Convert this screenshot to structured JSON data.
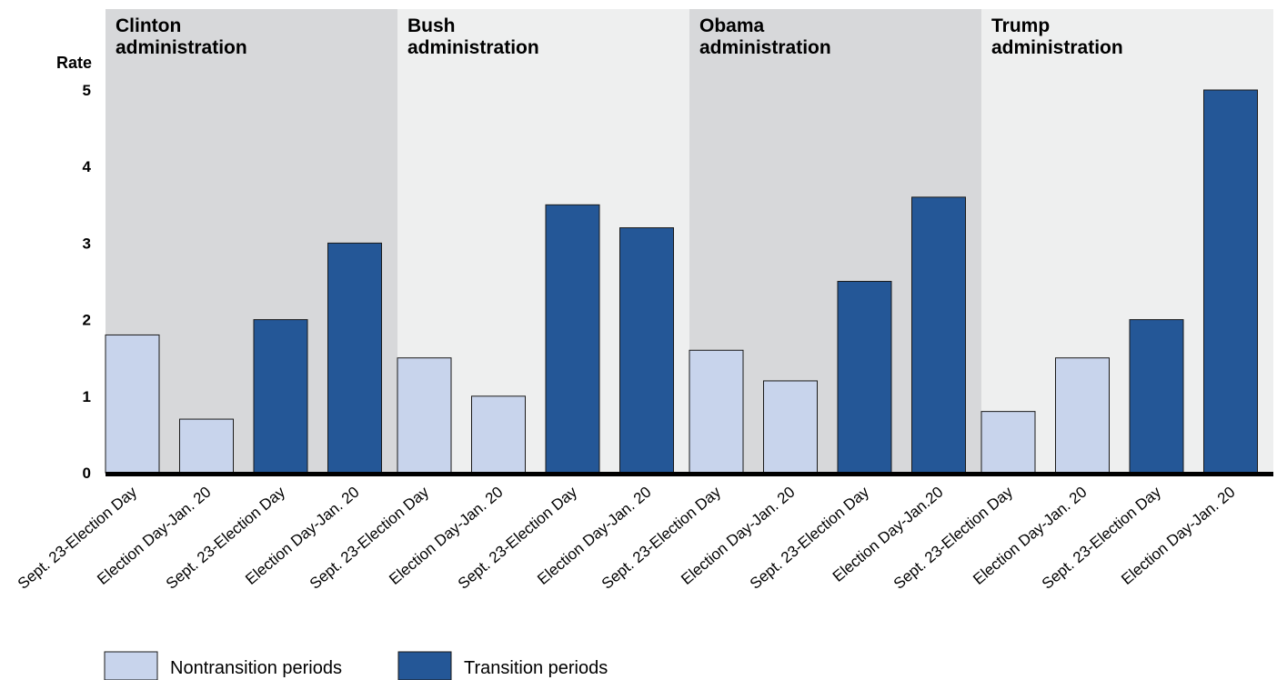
{
  "chart_data": {
    "type": "bar",
    "ylabel": "Rate",
    "ylim": [
      0,
      5
    ],
    "yticks": [
      0,
      1,
      2,
      3,
      4,
      5
    ],
    "grid": false,
    "legend_position": "bottom-left",
    "colors": {
      "Nontransition periods": "#c8d4ec",
      "Transition periods": "#245797",
      "band_dark": "#d7d8da",
      "band_light": "#eeefef"
    },
    "legend": [
      {
        "name": "Nontransition periods",
        "color": "#c8d4ec"
      },
      {
        "name": "Transition periods",
        "color": "#245797"
      }
    ],
    "groups": [
      {
        "name": "Clinton administration",
        "bars": [
          {
            "label": "Sept. 23-Election Day",
            "value": 1.8,
            "series": "Nontransition periods"
          },
          {
            "label": "Election Day-Jan. 20",
            "value": 0.7,
            "series": "Nontransition periods"
          },
          {
            "label": "Sept. 23-Election Day",
            "value": 2.0,
            "series": "Transition periods"
          },
          {
            "label": "Election Day-Jan. 20",
            "value": 3.0,
            "series": "Transition periods"
          }
        ]
      },
      {
        "name": "Bush administration",
        "bars": [
          {
            "label": "Sept. 23-Election Day",
            "value": 1.5,
            "series": "Nontransition periods"
          },
          {
            "label": "Election Day-Jan. 20",
            "value": 1.0,
            "series": "Nontransition periods"
          },
          {
            "label": "Sept. 23-Election Day",
            "value": 3.5,
            "series": "Transition periods"
          },
          {
            "label": "Election Day-Jan. 20",
            "value": 3.2,
            "series": "Transition periods"
          }
        ]
      },
      {
        "name": "Obama administration",
        "bars": [
          {
            "label": "Sept. 23-Election Day",
            "value": 1.6,
            "series": "Nontransition periods"
          },
          {
            "label": "Election Day-Jan. 20",
            "value": 1.2,
            "series": "Nontransition periods"
          },
          {
            "label": "Sept. 23-Election Day",
            "value": 2.5,
            "series": "Transition periods"
          },
          {
            "label": "Election Day-Jan.20",
            "value": 3.6,
            "series": "Transition periods"
          }
        ]
      },
      {
        "name": "Trump administration",
        "bars": [
          {
            "label": "Sept. 23-Election Day",
            "value": 0.8,
            "series": "Nontransition periods"
          },
          {
            "label": "Election Day-Jan. 20",
            "value": 1.5,
            "series": "Nontransition periods"
          },
          {
            "label": "Sept. 23-Election Day",
            "value": 2.0,
            "series": "Transition periods"
          },
          {
            "label": "Election Day-Jan. 20",
            "value": 5.0,
            "series": "Transition periods"
          }
        ]
      }
    ]
  }
}
